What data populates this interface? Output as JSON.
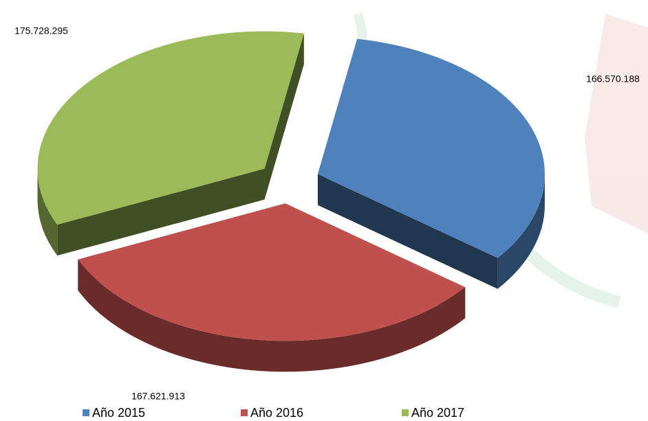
{
  "chart_data": {
    "type": "pie",
    "categories": [
      "Año 2015",
      "Año 2016",
      "Año 2017"
    ],
    "values": [
      166570188,
      167621913,
      175728295
    ],
    "value_labels": [
      "166.570.188",
      "167.621.913",
      "175.728.295"
    ],
    "colors": [
      "#4f81bd",
      "#c0504d",
      "#9bbb59"
    ],
    "legend": "bottom"
  }
}
